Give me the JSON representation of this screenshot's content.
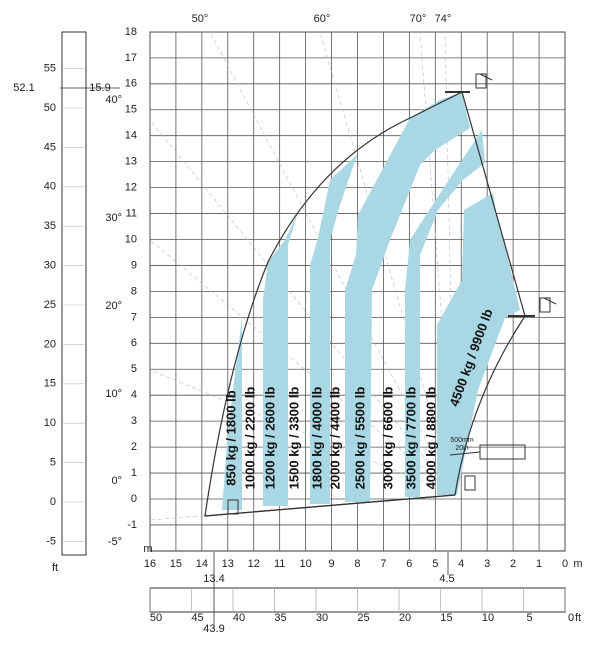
{
  "meter_scale_y": [
    18,
    17,
    16,
    15,
    14,
    13,
    12,
    11,
    10,
    9,
    8,
    7,
    6,
    5,
    4,
    3,
    2,
    1,
    0,
    -1
  ],
  "meter_scale_x": [
    16,
    15,
    14,
    13,
    12,
    11,
    10,
    9,
    8,
    7,
    6,
    5,
    4,
    3,
    2,
    1,
    0
  ],
  "meter_unit_left": "m",
  "meter_unit_bottom": "m",
  "ft_scale_left": [
    55,
    50,
    45,
    40,
    35,
    30,
    25,
    20,
    15,
    10,
    5,
    0,
    -5
  ],
  "ft_unit_left": "ft",
  "ft_scale_bottom": [
    50,
    45,
    40,
    35,
    30,
    25,
    20,
    15,
    10,
    5,
    0
  ],
  "ft_unit_bottom": "ft",
  "angles_left": [
    "40°",
    "30°",
    "20°",
    "10°",
    "0°",
    "-5°"
  ],
  "angles_top": [
    "50°",
    "60°",
    "70°",
    "74°"
  ],
  "markers": {
    "max_height_ft": "52.1",
    "max_height_m": "15.9",
    "reach_left_m": "13.4",
    "reach_right_m": "4.5",
    "reach_left_ft": "43.9"
  },
  "loads": [
    "850 kg / 1800 lb",
    "1000 kg / 2200 lb",
    "1200 kg / 2600 lb",
    "1500 kg / 3300 lb",
    "1800 kg / 4000 lb",
    "2000 kg / 4400 lb",
    "2500 kg / 5500 lb",
    "3000 kg / 6600 lb",
    "3500 kg / 7700 lb",
    "4000 kg / 8800 lb",
    "4500 kg / 9900 lb"
  ],
  "offset_note": [
    "500mm",
    "20in"
  ]
}
